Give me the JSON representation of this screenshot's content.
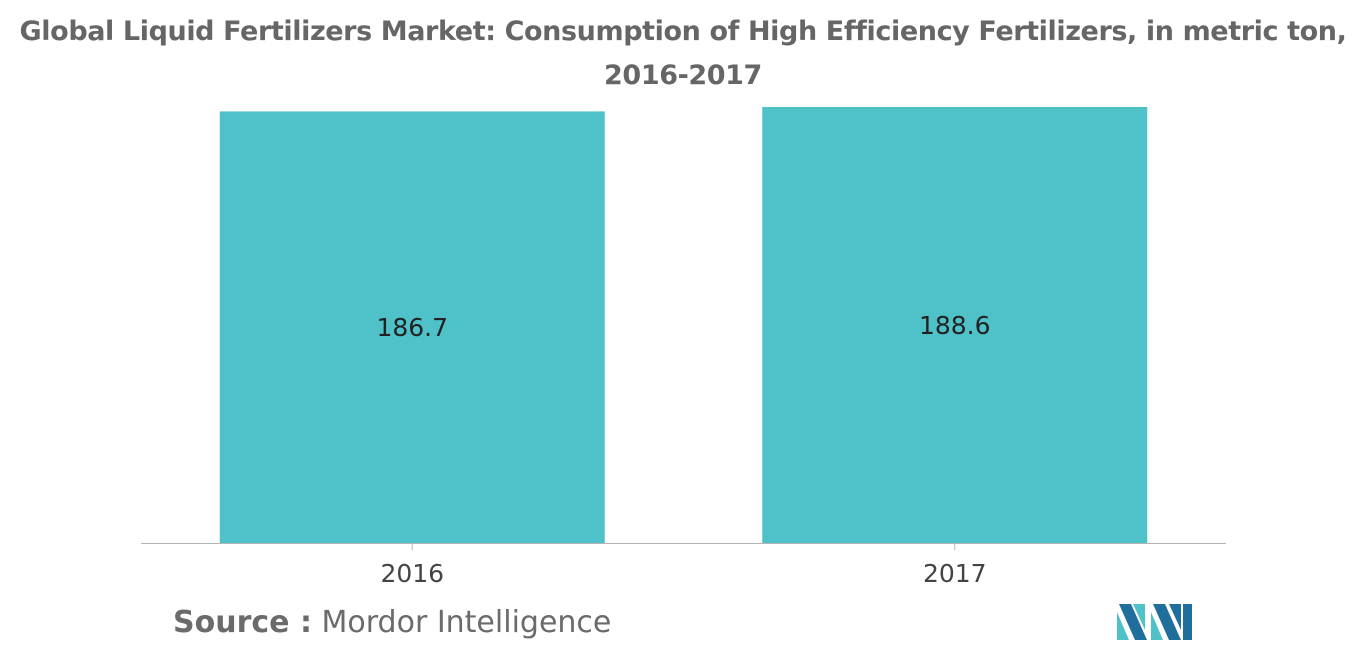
{
  "chart_data": {
    "type": "bar",
    "title": "Global Liquid Fertilizers Market: Consumption of High Efficiency Fertilizers, in metric ton,",
    "subtitle": "2016-2017",
    "categories": [
      "2016",
      "2017"
    ],
    "values": [
      186.7,
      188.6
    ],
    "data_labels": [
      "186.7",
      "188.6"
    ],
    "xlabel": "",
    "ylabel": "",
    "ylim": [
      0,
      188.6
    ],
    "grid": false,
    "legend": "none",
    "bar_color": "#4fc2c9"
  },
  "source": {
    "label": "Source :",
    "value": "Mordor Intelligence"
  },
  "colors": {
    "title": "#666666",
    "bar": "#4fc2c9",
    "axis": "#b5b5b5",
    "tick_label": "#444444",
    "logo_dark": "#1f6e9c",
    "logo_light": "#4fc2c9"
  },
  "logo": {
    "icon": "mordor-intelligence-logo-icon"
  }
}
